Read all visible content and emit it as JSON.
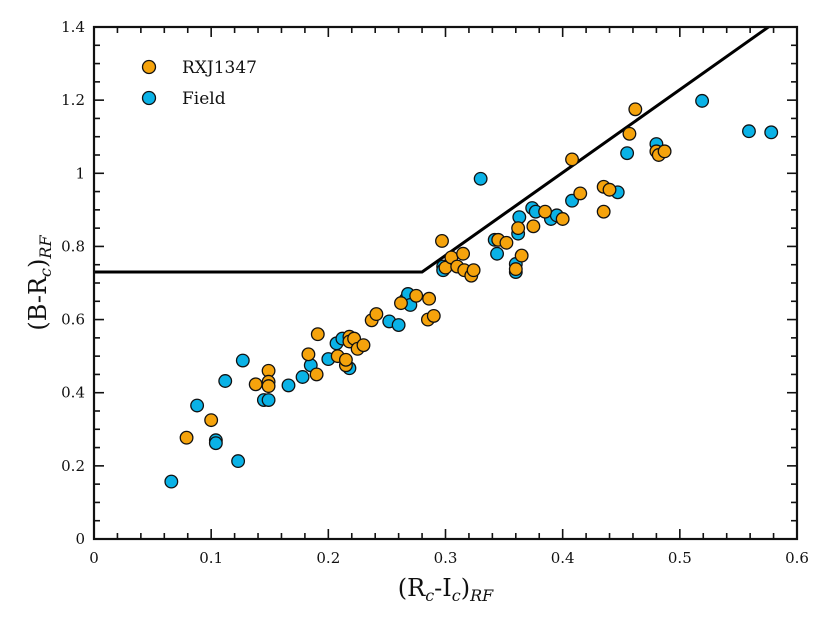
{
  "chart_data": {
    "type": "scatter",
    "title": "",
    "xlabel": "(R_c-I_c)_RF",
    "ylabel": "(B-R_c)_RF",
    "xlabel_parts": {
      "open": "(R",
      "sub1": "c",
      "mid": "-I",
      "sub2": "c",
      "close": ")",
      "sub3": "RF"
    },
    "ylabel_parts": {
      "open": "(B-R",
      "sub1": "c",
      "close": ")",
      "sub3": "RF"
    },
    "xlim": [
      0,
      0.6
    ],
    "ylim": [
      0,
      1.4
    ],
    "xticks": [
      0,
      0.1,
      0.2,
      0.3,
      0.4,
      0.5,
      0.6
    ],
    "yticks": [
      0,
      0.2,
      0.4,
      0.6,
      0.8,
      1,
      1.2,
      1.4
    ],
    "xtick_labels": [
      "0",
      "0.1",
      "0.2",
      "0.3",
      "0.4",
      "0.5",
      "0.6"
    ],
    "ytick_labels": [
      "0",
      "0.2",
      "0.4",
      "0.6",
      "0.8",
      "1",
      "1.2",
      "1.4"
    ],
    "grid": false,
    "legend": {
      "position": "top-left",
      "entries": [
        "RXJ1347",
        "Field"
      ]
    },
    "colors": {
      "RXJ1347": "#f5a30c",
      "Field": "#0ab2e6",
      "marker_edge": "#111111",
      "line": "#000000"
    },
    "selection_line": {
      "x": [
        0,
        0.28,
        0.58
      ],
      "y": [
        0.73,
        0.73,
        1.41
      ]
    },
    "series": [
      {
        "name": "Field",
        "points": [
          [
            0.066,
            0.157
          ],
          [
            0.088,
            0.365
          ],
          [
            0.104,
            0.27
          ],
          [
            0.104,
            0.262
          ],
          [
            0.112,
            0.432
          ],
          [
            0.123,
            0.213
          ],
          [
            0.127,
            0.488
          ],
          [
            0.145,
            0.38
          ],
          [
            0.149,
            0.38
          ],
          [
            0.166,
            0.42
          ],
          [
            0.178,
            0.443
          ],
          [
            0.185,
            0.475
          ],
          [
            0.2,
            0.492
          ],
          [
            0.207,
            0.535
          ],
          [
            0.212,
            0.548
          ],
          [
            0.218,
            0.467
          ],
          [
            0.252,
            0.595
          ],
          [
            0.26,
            0.585
          ],
          [
            0.266,
            0.655
          ],
          [
            0.268,
            0.67
          ],
          [
            0.27,
            0.64
          ],
          [
            0.298,
            0.745
          ],
          [
            0.298,
            0.735
          ],
          [
            0.33,
            0.985
          ],
          [
            0.342,
            0.818
          ],
          [
            0.344,
            0.78
          ],
          [
            0.36,
            0.752
          ],
          [
            0.36,
            0.73
          ],
          [
            0.362,
            0.835
          ],
          [
            0.363,
            0.88
          ],
          [
            0.374,
            0.905
          ],
          [
            0.377,
            0.895
          ],
          [
            0.39,
            0.875
          ],
          [
            0.395,
            0.885
          ],
          [
            0.408,
            0.925
          ],
          [
            0.447,
            0.948
          ],
          [
            0.455,
            1.055
          ],
          [
            0.48,
            1.08
          ],
          [
            0.519,
            1.198
          ],
          [
            0.559,
            1.115
          ],
          [
            0.578,
            1.112
          ]
        ]
      },
      {
        "name": "RXJ1347",
        "points": [
          [
            0.079,
            0.277
          ],
          [
            0.1,
            0.325
          ],
          [
            0.138,
            0.423
          ],
          [
            0.149,
            0.46
          ],
          [
            0.149,
            0.43
          ],
          [
            0.149,
            0.418
          ],
          [
            0.183,
            0.505
          ],
          [
            0.19,
            0.45
          ],
          [
            0.191,
            0.56
          ],
          [
            0.208,
            0.5
          ],
          [
            0.215,
            0.475
          ],
          [
            0.215,
            0.49
          ],
          [
            0.218,
            0.553
          ],
          [
            0.218,
            0.54
          ],
          [
            0.222,
            0.548
          ],
          [
            0.225,
            0.52
          ],
          [
            0.23,
            0.53
          ],
          [
            0.237,
            0.598
          ],
          [
            0.241,
            0.615
          ],
          [
            0.262,
            0.645
          ],
          [
            0.275,
            0.665
          ],
          [
            0.285,
            0.6
          ],
          [
            0.286,
            0.657
          ],
          [
            0.29,
            0.61
          ],
          [
            0.297,
            0.815
          ],
          [
            0.3,
            0.742
          ],
          [
            0.305,
            0.77
          ],
          [
            0.31,
            0.745
          ],
          [
            0.315,
            0.78
          ],
          [
            0.316,
            0.735
          ],
          [
            0.322,
            0.72
          ],
          [
            0.324,
            0.735
          ],
          [
            0.345,
            0.818
          ],
          [
            0.352,
            0.81
          ],
          [
            0.36,
            0.738
          ],
          [
            0.362,
            0.85
          ],
          [
            0.365,
            0.775
          ],
          [
            0.375,
            0.855
          ],
          [
            0.385,
            0.895
          ],
          [
            0.4,
            0.875
          ],
          [
            0.408,
            1.038
          ],
          [
            0.415,
            0.945
          ],
          [
            0.435,
            0.963
          ],
          [
            0.435,
            0.895
          ],
          [
            0.44,
            0.955
          ],
          [
            0.457,
            1.108
          ],
          [
            0.462,
            1.175
          ],
          [
            0.48,
            1.06
          ],
          [
            0.482,
            1.05
          ],
          [
            0.487,
            1.06
          ]
        ]
      }
    ]
  }
}
